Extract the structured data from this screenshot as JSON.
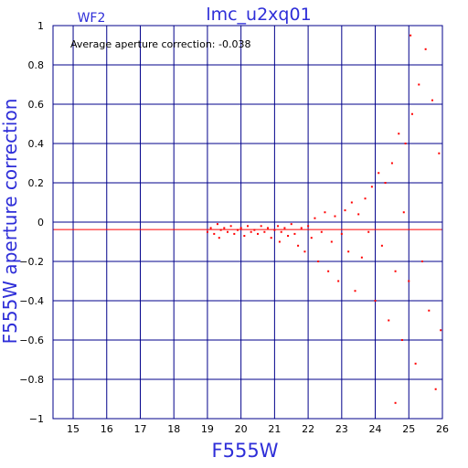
{
  "chart_data": {
    "type": "scatter",
    "title": "lmc_u2xq01",
    "panel_label": "WF2",
    "annotation": "Average aperture correction: -0.038",
    "xlabel": "F555W",
    "ylabel": "F555W aperture correction",
    "xlim": [
      14.4,
      26
    ],
    "ylim": [
      -1,
      1
    ],
    "x_ticks": [
      15,
      16,
      17,
      18,
      19,
      20,
      21,
      22,
      23,
      24,
      25,
      26
    ],
    "x_tick_labels": [
      "15",
      "16",
      "17",
      "18",
      "19",
      "20",
      "21",
      "22",
      "23",
      "24",
      "25",
      "26"
    ],
    "y_ticks": [
      -1,
      -0.8,
      -0.6,
      -0.4,
      -0.2,
      0,
      0.2,
      0.4,
      0.6,
      0.8,
      1
    ],
    "y_tick_labels": [
      "−1",
      "−0.8",
      "−0.6",
      "−0.4",
      "−0.2",
      "0",
      "0.2",
      "0.4",
      "0.6",
      "0.8",
      "1"
    ],
    "grid": true,
    "average_line": -0.038,
    "colors": {
      "frame": "#00008b",
      "labels": "#2e2ed8",
      "points": "#ff0000",
      "average_line": "#ff0000"
    },
    "points": [
      {
        "x": 19.0,
        "y": -0.05
      },
      {
        "x": 19.1,
        "y": -0.03
      },
      {
        "x": 19.2,
        "y": -0.06
      },
      {
        "x": 19.3,
        "y": -0.01
      },
      {
        "x": 19.35,
        "y": -0.08
      },
      {
        "x": 19.4,
        "y": -0.04
      },
      {
        "x": 19.5,
        "y": -0.03
      },
      {
        "x": 19.6,
        "y": -0.05
      },
      {
        "x": 19.7,
        "y": -0.02
      },
      {
        "x": 19.8,
        "y": -0.06
      },
      {
        "x": 19.9,
        "y": -0.04
      },
      {
        "x": 20.0,
        "y": -0.03
      },
      {
        "x": 20.1,
        "y": -0.07
      },
      {
        "x": 20.2,
        "y": -0.02
      },
      {
        "x": 20.3,
        "y": -0.05
      },
      {
        "x": 20.4,
        "y": -0.04
      },
      {
        "x": 20.5,
        "y": -0.06
      },
      {
        "x": 20.6,
        "y": -0.02
      },
      {
        "x": 20.7,
        "y": -0.05
      },
      {
        "x": 20.8,
        "y": -0.03
      },
      {
        "x": 20.9,
        "y": -0.08
      },
      {
        "x": 21.0,
        "y": -0.04
      },
      {
        "x": 21.1,
        "y": -0.02
      },
      {
        "x": 21.15,
        "y": -0.1
      },
      {
        "x": 21.2,
        "y": -0.05
      },
      {
        "x": 21.3,
        "y": -0.03
      },
      {
        "x": 21.4,
        "y": -0.07
      },
      {
        "x": 21.5,
        "y": -0.01
      },
      {
        "x": 21.6,
        "y": -0.06
      },
      {
        "x": 21.7,
        "y": -0.12
      },
      {
        "x": 21.8,
        "y": -0.03
      },
      {
        "x": 21.9,
        "y": -0.15
      },
      {
        "x": 22.0,
        "y": -0.02
      },
      {
        "x": 22.1,
        "y": -0.08
      },
      {
        "x": 22.2,
        "y": 0.02
      },
      {
        "x": 22.3,
        "y": -0.2
      },
      {
        "x": 22.4,
        "y": -0.05
      },
      {
        "x": 22.5,
        "y": 0.05
      },
      {
        "x": 22.6,
        "y": -0.25
      },
      {
        "x": 22.7,
        "y": -0.1
      },
      {
        "x": 22.8,
        "y": 0.03
      },
      {
        "x": 22.9,
        "y": -0.3
      },
      {
        "x": 23.0,
        "y": -0.06
      },
      {
        "x": 23.1,
        "y": 0.06
      },
      {
        "x": 23.2,
        "y": -0.15
      },
      {
        "x": 23.3,
        "y": 0.1
      },
      {
        "x": 23.4,
        "y": -0.35
      },
      {
        "x": 23.5,
        "y": 0.04
      },
      {
        "x": 23.6,
        "y": -0.18
      },
      {
        "x": 23.7,
        "y": 0.12
      },
      {
        "x": 23.8,
        "y": -0.05
      },
      {
        "x": 23.9,
        "y": 0.18
      },
      {
        "x": 24.0,
        "y": -0.4
      },
      {
        "x": 24.1,
        "y": 0.25
      },
      {
        "x": 24.2,
        "y": -0.12
      },
      {
        "x": 24.3,
        "y": 0.2
      },
      {
        "x": 24.4,
        "y": -0.5
      },
      {
        "x": 24.5,
        "y": 0.3
      },
      {
        "x": 24.6,
        "y": -0.25
      },
      {
        "x": 24.7,
        "y": 0.45
      },
      {
        "x": 24.8,
        "y": -0.6
      },
      {
        "x": 24.9,
        "y": 0.4
      },
      {
        "x": 25.0,
        "y": -0.3
      },
      {
        "x": 25.1,
        "y": 0.55
      },
      {
        "x": 25.2,
        "y": -0.72
      },
      {
        "x": 25.3,
        "y": 0.7
      },
      {
        "x": 25.4,
        "y": -0.2
      },
      {
        "x": 25.5,
        "y": 0.88
      },
      {
        "x": 25.6,
        "y": -0.45
      },
      {
        "x": 25.7,
        "y": 0.62
      },
      {
        "x": 25.8,
        "y": -0.85
      },
      {
        "x": 25.9,
        "y": 0.35
      },
      {
        "x": 25.95,
        "y": -0.55
      },
      {
        "x": 24.6,
        "y": -0.92
      },
      {
        "x": 25.05,
        "y": 0.95
      },
      {
        "x": 24.85,
        "y": 0.05
      }
    ]
  }
}
